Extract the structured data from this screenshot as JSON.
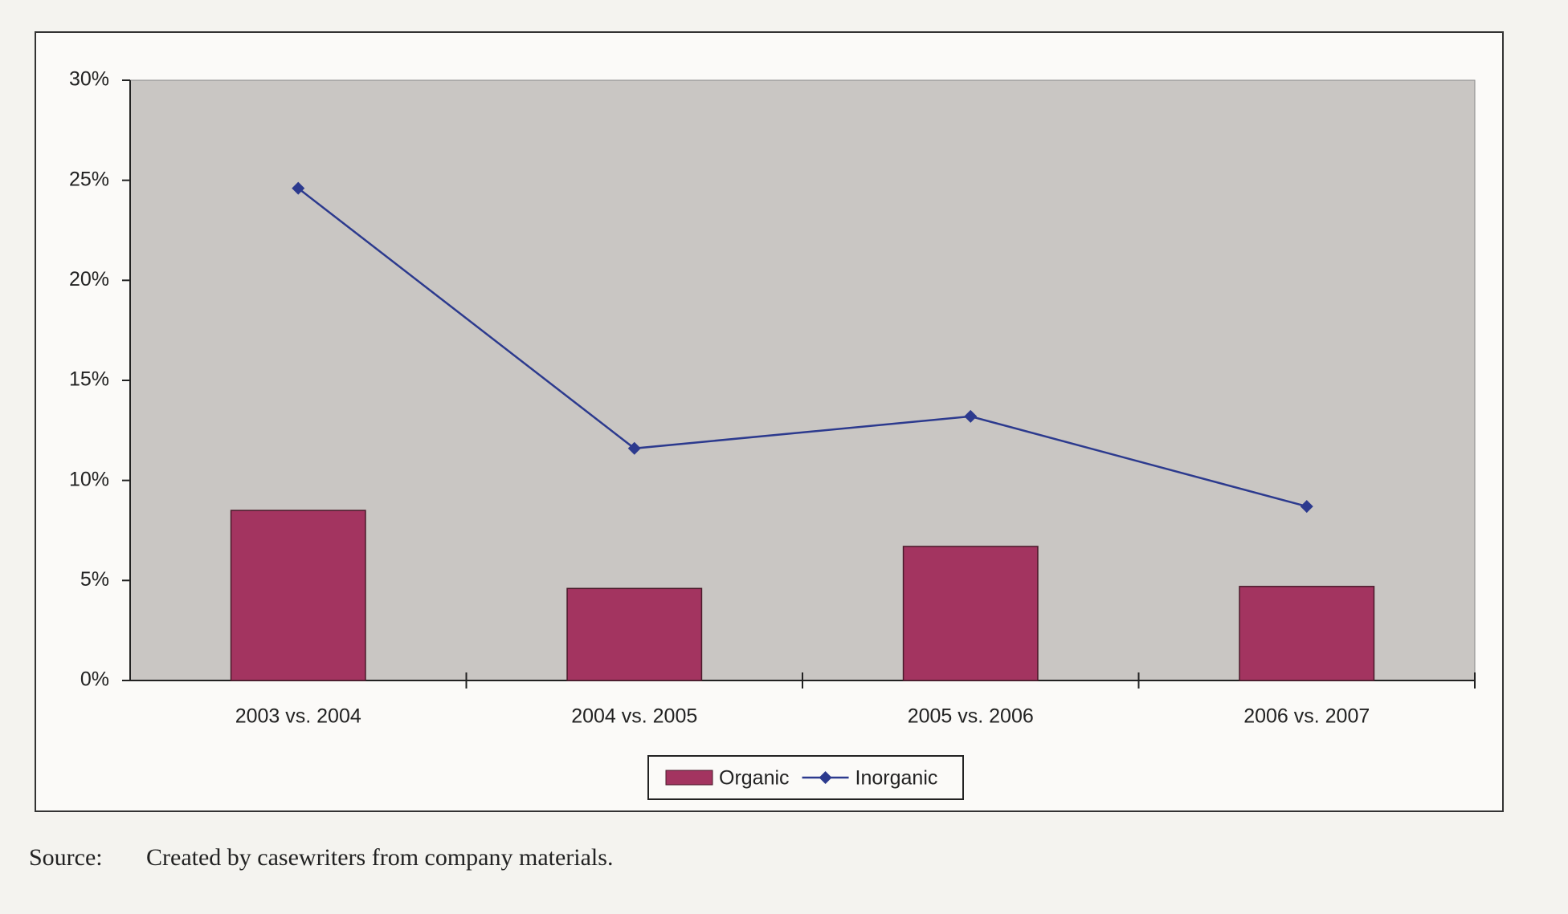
{
  "chart_data": {
    "type": "bar",
    "categories": [
      "2003 vs. 2004",
      "2004 vs. 2005",
      "2005 vs. 2006",
      "2006 vs. 2007"
    ],
    "series": [
      {
        "name": "Organic",
        "type": "bar",
        "color": "#a33460",
        "values": [
          8.5,
          4.6,
          6.7,
          4.7
        ]
      },
      {
        "name": "Inorganic",
        "type": "line",
        "color": "#2c3a8e",
        "values": [
          24.6,
          11.6,
          13.2,
          8.7
        ]
      }
    ],
    "ylim": [
      0,
      30
    ],
    "yticks": [
      {
        "value": 0,
        "label": "0%"
      },
      {
        "value": 5,
        "label": "5%"
      },
      {
        "value": 10,
        "label": "10%"
      },
      {
        "value": 15,
        "label": "15%"
      },
      {
        "value": 20,
        "label": "20%"
      },
      {
        "value": 25,
        "label": "25%"
      },
      {
        "value": 30,
        "label": "30%"
      }
    ],
    "legend": "bottom",
    "source_label": "Source:",
    "source_text": "Created by casewriters from company materials."
  }
}
